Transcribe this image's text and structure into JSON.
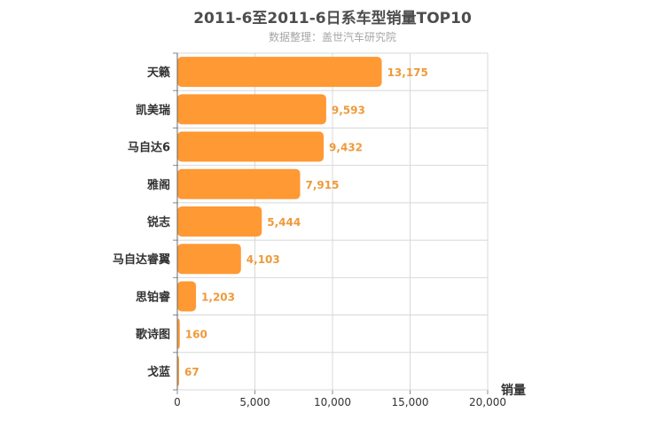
{
  "colors": {
    "bar": "#ff9933",
    "label": "#ee9a3a",
    "grid": "#d8d8d8"
  },
  "chart_data": {
    "type": "bar",
    "orientation": "horizontal",
    "title": "2011-6至2011-6日系车型销量TOP10",
    "subtitle": "数据整理：盖世汽车研究院",
    "xlabel": "销量",
    "ylabel": "",
    "categories": [
      "天籁",
      "凯美瑞",
      "马自达6",
      "雅阁",
      "锐志",
      "马自达睿翼",
      "思铂睿",
      "歌诗图",
      "戈蓝"
    ],
    "values": [
      13175,
      9593,
      9432,
      7915,
      5444,
      4103,
      1203,
      160,
      67
    ],
    "value_labels": [
      "13,175",
      "9,593",
      "9,432",
      "7,915",
      "5,444",
      "4,103",
      "1,203",
      "160",
      "67"
    ],
    "xlim": [
      0,
      20000
    ],
    "ticks": [
      0,
      5000,
      10000,
      15000,
      20000
    ],
    "tick_labels": [
      "0",
      "5,000",
      "10,000",
      "15,000",
      "20,000"
    ],
    "grid": true,
    "legend": "none"
  }
}
